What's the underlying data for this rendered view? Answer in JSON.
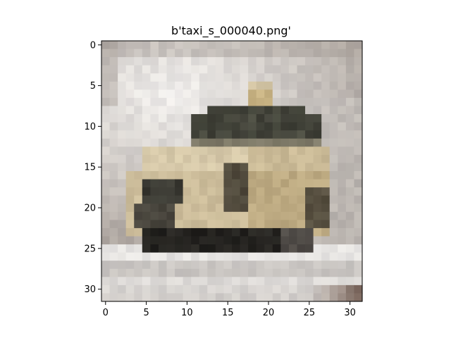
{
  "chart_data": {
    "type": "heatmap",
    "title": "b'taxi_s_000040.png'",
    "xlabel": "",
    "ylabel": "",
    "image_size": [
      32,
      32
    ],
    "xlim": [
      -0.5,
      31.5
    ],
    "ylim": [
      31.5,
      -0.5
    ],
    "x_ticks": [
      0,
      5,
      10,
      15,
      20,
      25,
      30
    ],
    "y_ticks": [
      0,
      5,
      10,
      15,
      20,
      25,
      30
    ],
    "x_tick_labels": [
      "0",
      "5",
      "10",
      "15",
      "20",
      "25",
      "30"
    ],
    "y_tick_labels": [
      "0",
      "5",
      "10",
      "15",
      "20",
      "25",
      "30"
    ],
    "grid": false,
    "colors": {
      "background": "#ffffff",
      "axes_frame": "#000000",
      "sky_light": "#f2f0ee",
      "wall_shadow": "#9e958e",
      "car_cream": "#d9ccae",
      "car_tan": "#b8a47a",
      "car_dark": "#2e2c28",
      "window_olive": "#55584a",
      "taxi_sign": "#c4ad78",
      "ground_light": "#e6e4e2",
      "corner_brown": "#7e6a60"
    }
  }
}
